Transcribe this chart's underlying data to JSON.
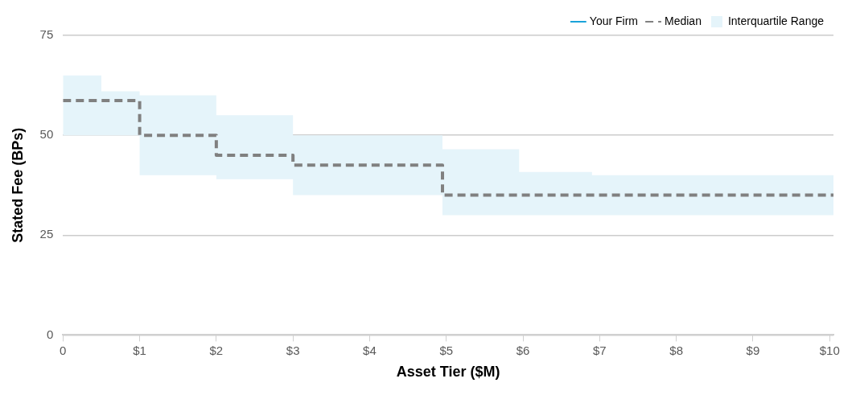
{
  "chart_data": {
    "type": "step",
    "xlabel": "Asset Tier ($M)",
    "ylabel": "Stated Fee (BPs)",
    "xlim": [
      0,
      10.05
    ],
    "xticks": [
      0,
      {
        "value": 1,
        "label": "$1"
      },
      {
        "value": 2,
        "label": "$2"
      },
      {
        "value": 3,
        "label": "$3"
      },
      {
        "value": 4,
        "label": "$4"
      },
      {
        "value": 5,
        "label": "$5"
      },
      {
        "value": 6,
        "label": "$6"
      },
      {
        "value": 7,
        "label": "$7"
      },
      {
        "value": 8,
        "label": "$8"
      },
      {
        "value": 9,
        "label": "$9"
      },
      {
        "value": 10,
        "label": "$10"
      }
    ],
    "ylim": [
      0,
      75
    ],
    "yticks": [
      0,
      25,
      50,
      75
    ],
    "grid": "y",
    "legend": "top right",
    "series": [
      {
        "name": "Your Firm",
        "type": "line",
        "color": "#1aa3d9"
      },
      {
        "name": "Median",
        "color": "#808080",
        "line_style": "dashed",
        "x": [
          0,
          1,
          2,
          3,
          4.95,
          10.05
        ],
        "values": [
          58.7,
          50,
          45,
          42.5,
          35,
          35
        ]
      },
      {
        "name": "Interquartile Range",
        "type": "area",
        "color": "#e5f4fa",
        "x": [
          0,
          0.5,
          1,
          2,
          3,
          4.95,
          5.95,
          6.9,
          10.05
        ],
        "values": [
          null,
          null,
          null,
          null,
          null,
          null,
          null,
          null,
          null
        ],
        "lower": [
          50,
          50,
          40,
          39,
          35,
          30,
          30,
          30,
          30
        ],
        "upper": [
          65,
          61,
          60,
          55,
          50,
          46.5,
          40.8,
          40,
          40
        ]
      }
    ]
  }
}
